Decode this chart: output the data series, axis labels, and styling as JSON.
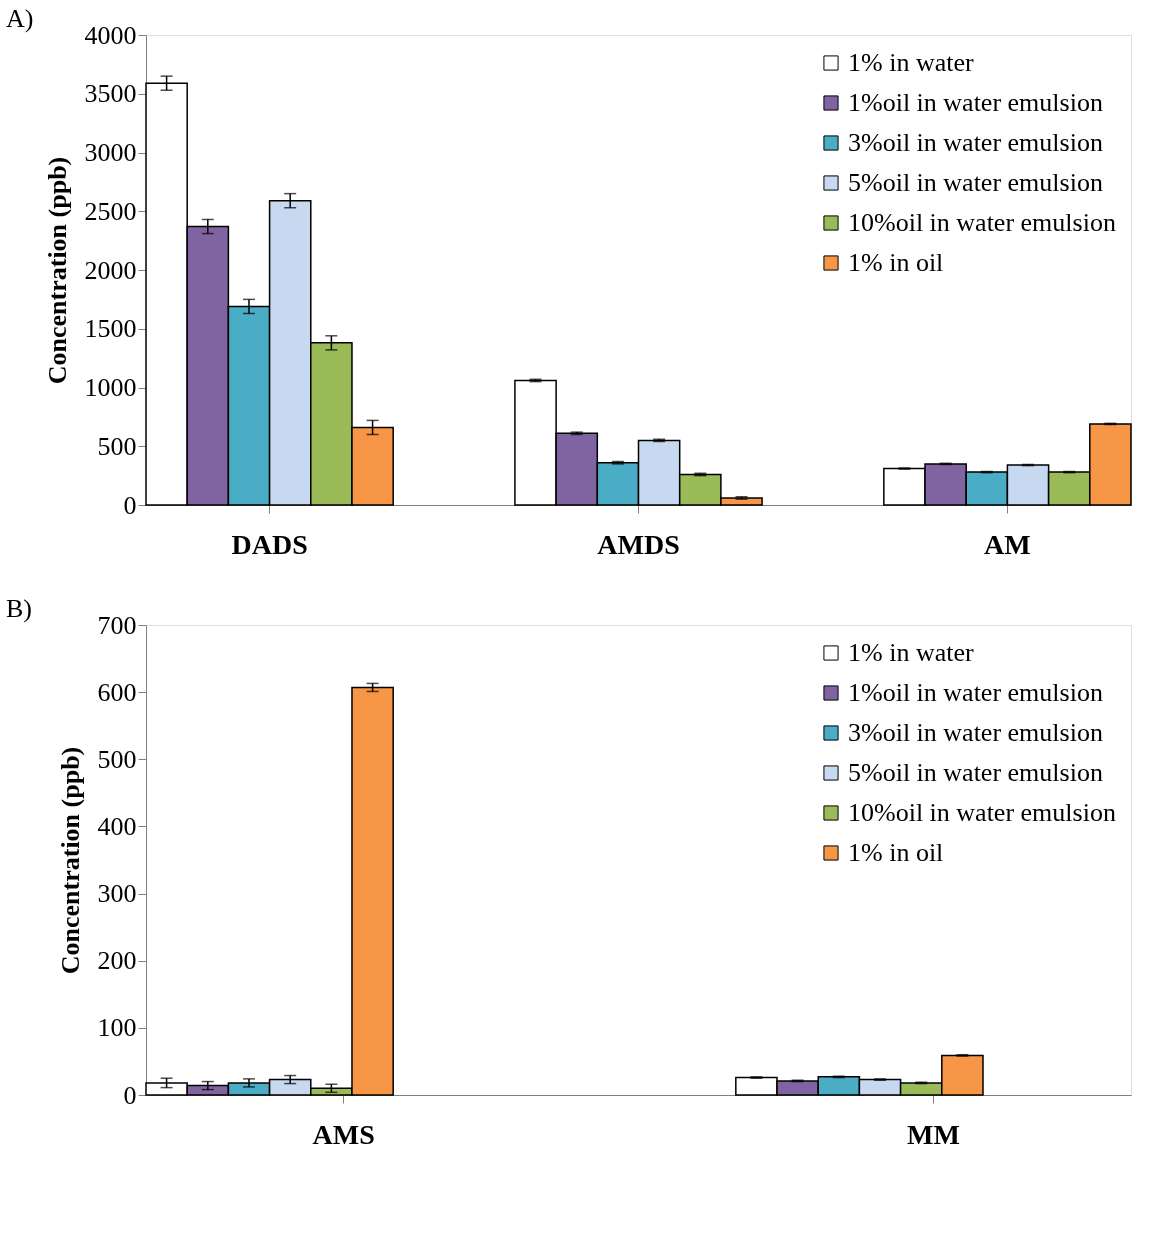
{
  "chart_data": [
    {
      "type": "bar",
      "title": "A)",
      "ylabel": "Concentration (ppb)",
      "categories": [
        "DADS",
        "AMDS",
        "AM"
      ],
      "ylim": [
        0,
        4000
      ],
      "yticks": [
        0,
        500,
        1000,
        1500,
        2000,
        2500,
        3000,
        3500,
        4000
      ],
      "grid": false,
      "legend": "right",
      "series": [
        {
          "name": "1% in water",
          "color": "#ffffff",
          "values": [
            3590,
            1060,
            310
          ],
          "errors": [
            60,
            10,
            5
          ]
        },
        {
          "name": "1%oil in water emulsion",
          "color": "#8064a2",
          "values": [
            2370,
            610,
            350
          ],
          "errors": [
            60,
            10,
            5
          ]
        },
        {
          "name": "3%oil in water emulsion",
          "color": "#4bacc6",
          "values": [
            1690,
            360,
            280
          ],
          "errors": [
            60,
            10,
            5
          ]
        },
        {
          "name": "5%oil in water emulsion",
          "color": "#c6d9f1",
          "values": [
            2590,
            550,
            340
          ],
          "errors": [
            60,
            10,
            5
          ]
        },
        {
          "name": "10%oil in water emulsion",
          "color": "#9bbb59",
          "values": [
            1380,
            260,
            280
          ],
          "errors": [
            60,
            10,
            5
          ]
        },
        {
          "name": "1% in oil",
          "color": "#f79646",
          "values": [
            660,
            60,
            690
          ],
          "errors": [
            60,
            10,
            5
          ]
        }
      ]
    },
    {
      "type": "bar",
      "title": "B)",
      "ylabel": "Concentration (ppb)",
      "categories": [
        "AMS",
        "MM"
      ],
      "ylim": [
        0,
        700
      ],
      "yticks": [
        0,
        100,
        200,
        300,
        400,
        500,
        600,
        700
      ],
      "grid": false,
      "legend": "right",
      "series": [
        {
          "name": "1% in water",
          "color": "#ffffff",
          "values": [
            18,
            26
          ],
          "errors": [
            7,
            1
          ]
        },
        {
          "name": "1%oil in water emulsion",
          "color": "#8064a2",
          "values": [
            14,
            21
          ],
          "errors": [
            6,
            1
          ]
        },
        {
          "name": "3%oil in water emulsion",
          "color": "#4bacc6",
          "values": [
            18,
            27
          ],
          "errors": [
            6,
            1
          ]
        },
        {
          "name": "5%oil in water emulsion",
          "color": "#c6d9f1",
          "values": [
            23,
            23
          ],
          "errors": [
            6,
            1
          ]
        },
        {
          "name": "10%oil in water emulsion",
          "color": "#9bbb59",
          "values": [
            10,
            18
          ],
          "errors": [
            6,
            1
          ]
        },
        {
          "name": "1% in oil",
          "color": "#f79646",
          "values": [
            607,
            59
          ],
          "errors": [
            6,
            1
          ]
        }
      ]
    }
  ]
}
